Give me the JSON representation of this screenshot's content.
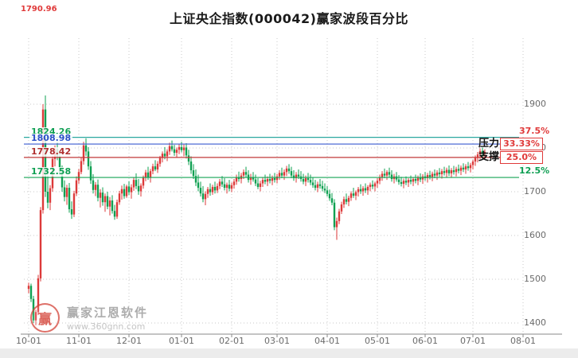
{
  "header": {
    "title": "上证央企指数(000042)赢家波段百分比",
    "latest_price": "1790.96"
  },
  "annotations": {
    "pressure": "压力",
    "support": "支撑"
  },
  "watermark": {
    "brand": "赢家江恩软件",
    "url": "www.360gnn.com",
    "seal": "赢"
  },
  "chart_data": {
    "type": "candlestick",
    "title": "上证央企指数(000042)赢家波段百分比",
    "ylabel": "",
    "xlabel": "",
    "ylim": [
      1400,
      1900
    ],
    "grid": true,
    "grid_color": "#c9c9c9",
    "up_color": "#dd3a3a",
    "down_color": "#0fa052",
    "y_ticks": [
      1900,
      1800,
      1700,
      1600,
      1500,
      1400
    ],
    "x_ticks": [
      {
        "label": "10-01",
        "index": 0
      },
      {
        "label": "11-01",
        "index": 21
      },
      {
        "label": "12-01",
        "index": 42
      },
      {
        "label": "01-01",
        "index": 64
      },
      {
        "label": "02-01",
        "index": 85
      },
      {
        "label": "03-01",
        "index": 104
      },
      {
        "label": "04-01",
        "index": 125
      },
      {
        "label": "05-01",
        "index": 146
      },
      {
        "label": "06-01",
        "index": 166
      },
      {
        "label": "07-01",
        "index": 186
      },
      {
        "label": "08-01",
        "index": 207
      }
    ],
    "levels": [
      {
        "value": 1824.26,
        "price_label": "1824.26",
        "pct_label": "37.5%",
        "line_color": "#2aa8a0",
        "price_color": "#0f9f53",
        "pct_color": "#e03a3a",
        "boxed": false
      },
      {
        "value": 1808.98,
        "price_label": "1808.98",
        "pct_label": "33.33%",
        "line_color": "#3a5bd0",
        "price_color": "#2b50c8",
        "pct_color": "#e03a3a",
        "boxed": true
      },
      {
        "value": 1778.42,
        "price_label": "1778.42",
        "pct_label": "25.0%",
        "line_color": "#c23a3a",
        "price_color": "#b03030",
        "pct_color": "#e03a3a",
        "boxed": true
      },
      {
        "value": 1732.58,
        "price_label": "1732.58",
        "pct_label": "12.5%",
        "line_color": "#15a354",
        "price_color": "#0f9f53",
        "pct_color": "#0f9f53",
        "boxed": false
      }
    ],
    "candles": [
      [
        1478,
        1492,
        1468,
        1485
      ],
      [
        1485,
        1490,
        1448,
        1455
      ],
      [
        1455,
        1462,
        1400,
        1406
      ],
      [
        1406,
        1430,
        1395,
        1425
      ],
      [
        1425,
        1510,
        1418,
        1502
      ],
      [
        1502,
        1665,
        1495,
        1658
      ],
      [
        1658,
        1900,
        1650,
        1888
      ],
      [
        1888,
        1920,
        1688,
        1700
      ],
      [
        1700,
        1745,
        1662,
        1675
      ],
      [
        1675,
        1715,
        1658,
        1708
      ],
      [
        1708,
        1782,
        1700,
        1775
      ],
      [
        1775,
        1806,
        1758,
        1798
      ],
      [
        1798,
        1815,
        1772,
        1780
      ],
      [
        1780,
        1795,
        1738,
        1746
      ],
      [
        1746,
        1760,
        1700,
        1710
      ],
      [
        1710,
        1726,
        1678,
        1688
      ],
      [
        1688,
        1716,
        1670,
        1709
      ],
      [
        1709,
        1720,
        1652,
        1660
      ],
      [
        1660,
        1678,
        1638,
        1648
      ],
      [
        1648,
        1702,
        1642,
        1696
      ],
      [
        1696,
        1735,
        1690,
        1726
      ],
      [
        1726,
        1752,
        1718,
        1745
      ],
      [
        1745,
        1778,
        1740,
        1770
      ],
      [
        1770,
        1814,
        1762,
        1806
      ],
      [
        1806,
        1822,
        1782,
        1792
      ],
      [
        1792,
        1802,
        1750,
        1758
      ],
      [
        1758,
        1770,
        1718,
        1726
      ],
      [
        1726,
        1740,
        1696,
        1704
      ],
      [
        1704,
        1722,
        1690,
        1716
      ],
      [
        1716,
        1728,
        1678,
        1686
      ],
      [
        1686,
        1706,
        1664,
        1698
      ],
      [
        1698,
        1710,
        1668,
        1676
      ],
      [
        1676,
        1696,
        1654,
        1690
      ],
      [
        1690,
        1700,
        1660,
        1666
      ],
      [
        1666,
        1688,
        1646,
        1680
      ],
      [
        1680,
        1692,
        1650,
        1656
      ],
      [
        1656,
        1670,
        1636,
        1643
      ],
      [
        1643,
        1682,
        1638,
        1676
      ],
      [
        1676,
        1702,
        1670,
        1696
      ],
      [
        1696,
        1714,
        1682,
        1706
      ],
      [
        1706,
        1718,
        1684,
        1690
      ],
      [
        1690,
        1716,
        1686,
        1712
      ],
      [
        1712,
        1724,
        1692,
        1699
      ],
      [
        1699,
        1717,
        1684,
        1710
      ],
      [
        1710,
        1732,
        1702,
        1727
      ],
      [
        1727,
        1742,
        1706,
        1713
      ],
      [
        1713,
        1729,
        1693,
        1701
      ],
      [
        1701,
        1719,
        1689,
        1714
      ],
      [
        1714,
        1737,
        1707,
        1732
      ],
      [
        1732,
        1750,
        1724,
        1744
      ],
      [
        1744,
        1757,
        1727,
        1733
      ],
      [
        1733,
        1752,
        1721,
        1747
      ],
      [
        1747,
        1764,
        1740,
        1758
      ],
      [
        1758,
        1772,
        1747,
        1751
      ],
      [
        1751,
        1770,
        1743,
        1764
      ],
      [
        1764,
        1782,
        1757,
        1777
      ],
      [
        1777,
        1792,
        1767,
        1787
      ],
      [
        1787,
        1802,
        1774,
        1781
      ],
      [
        1781,
        1797,
        1770,
        1792
      ],
      [
        1792,
        1812,
        1784,
        1804
      ],
      [
        1804,
        1817,
        1792,
        1797
      ],
      [
        1797,
        1807,
        1782,
        1789
      ],
      [
        1789,
        1801,
        1779,
        1796
      ],
      [
        1796,
        1810,
        1786,
        1802
      ],
      [
        1802,
        1814,
        1790,
        1795
      ],
      [
        1795,
        1808,
        1781,
        1801
      ],
      [
        1801,
        1811,
        1776,
        1783
      ],
      [
        1783,
        1796,
        1761,
        1769
      ],
      [
        1769,
        1781,
        1741,
        1749
      ],
      [
        1749,
        1763,
        1729,
        1736
      ],
      [
        1736,
        1751,
        1713,
        1721
      ],
      [
        1721,
        1739,
        1701,
        1709
      ],
      [
        1709,
        1723,
        1689,
        1696
      ],
      [
        1696,
        1713,
        1676,
        1683
      ],
      [
        1683,
        1701,
        1669,
        1695
      ],
      [
        1695,
        1711,
        1686,
        1706
      ],
      [
        1706,
        1719,
        1691,
        1699
      ],
      [
        1699,
        1716,
        1693,
        1711
      ],
      [
        1711,
        1723,
        1696,
        1703
      ],
      [
        1703,
        1719,
        1697,
        1713
      ],
      [
        1713,
        1729,
        1706,
        1723
      ],
      [
        1723,
        1736,
        1711,
        1717
      ],
      [
        1717,
        1731,
        1703,
        1709
      ],
      [
        1709,
        1721,
        1696,
        1716
      ],
      [
        1716,
        1727,
        1701,
        1707
      ],
      [
        1707,
        1721,
        1699,
        1715
      ],
      [
        1715,
        1729,
        1707,
        1723
      ],
      [
        1723,
        1739,
        1716,
        1733
      ],
      [
        1733,
        1746,
        1723,
        1729
      ],
      [
        1729,
        1743,
        1719,
        1737
      ],
      [
        1737,
        1751,
        1729,
        1745
      ],
      [
        1745,
        1757,
        1733,
        1739
      ],
      [
        1739,
        1749,
        1721,
        1727
      ],
      [
        1727,
        1741,
        1716,
        1733
      ],
      [
        1733,
        1745,
        1723,
        1728
      ],
      [
        1728,
        1739,
        1713,
        1719
      ],
      [
        1719,
        1731,
        1706,
        1711
      ],
      [
        1711,
        1725,
        1701,
        1719
      ],
      [
        1719,
        1733,
        1711,
        1727
      ],
      [
        1727,
        1739,
        1717,
        1723
      ],
      [
        1723,
        1735,
        1713,
        1729
      ],
      [
        1729,
        1741,
        1719,
        1725
      ],
      [
        1725,
        1737,
        1715,
        1731
      ],
      [
        1731,
        1743,
        1721,
        1727
      ],
      [
        1727,
        1741,
        1719,
        1735
      ],
      [
        1735,
        1749,
        1727,
        1743
      ],
      [
        1743,
        1755,
        1731,
        1737
      ],
      [
        1737,
        1751,
        1727,
        1745
      ],
      [
        1745,
        1759,
        1736,
        1753
      ],
      [
        1753,
        1763,
        1741,
        1747
      ],
      [
        1747,
        1757,
        1731,
        1737
      ],
      [
        1737,
        1749,
        1725,
        1731
      ],
      [
        1731,
        1745,
        1721,
        1739
      ],
      [
        1739,
        1751,
        1729,
        1735
      ],
      [
        1735,
        1747,
        1723,
        1729
      ],
      [
        1729,
        1741,
        1717,
        1723
      ],
      [
        1723,
        1737,
        1713,
        1731
      ],
      [
        1731,
        1743,
        1721,
        1727
      ],
      [
        1727,
        1739,
        1715,
        1721
      ],
      [
        1721,
        1733,
        1709,
        1715
      ],
      [
        1715,
        1727,
        1703,
        1709
      ],
      [
        1709,
        1723,
        1699,
        1717
      ],
      [
        1717,
        1729,
        1707,
        1713
      ],
      [
        1713,
        1725,
        1701,
        1707
      ],
      [
        1707,
        1719,
        1697,
        1703
      ],
      [
        1703,
        1713,
        1689,
        1695
      ],
      [
        1695,
        1705,
        1679,
        1685
      ],
      [
        1685,
        1697,
        1669,
        1675
      ],
      [
        1675,
        1683,
        1612,
        1619
      ],
      [
        1619,
        1641,
        1590,
        1633
      ],
      [
        1633,
        1661,
        1626,
        1655
      ],
      [
        1655,
        1677,
        1649,
        1671
      ],
      [
        1671,
        1689,
        1663,
        1683
      ],
      [
        1683,
        1696,
        1671,
        1677
      ],
      [
        1677,
        1691,
        1667,
        1686
      ],
      [
        1686,
        1701,
        1679,
        1696
      ],
      [
        1696,
        1709,
        1686,
        1691
      ],
      [
        1691,
        1703,
        1681,
        1699
      ],
      [
        1699,
        1711,
        1689,
        1706
      ],
      [
        1706,
        1717,
        1695,
        1701
      ],
      [
        1701,
        1713,
        1691,
        1708
      ],
      [
        1708,
        1719,
        1697,
        1703
      ],
      [
        1703,
        1715,
        1693,
        1711
      ],
      [
        1711,
        1721,
        1701,
        1716
      ],
      [
        1716,
        1726,
        1706,
        1712
      ],
      [
        1712,
        1723,
        1701,
        1719
      ],
      [
        1719,
        1731,
        1709,
        1725
      ],
      [
        1725,
        1739,
        1717,
        1733
      ],
      [
        1733,
        1747,
        1725,
        1741
      ],
      [
        1741,
        1753,
        1731,
        1737
      ],
      [
        1737,
        1749,
        1727,
        1745
      ],
      [
        1745,
        1755,
        1733,
        1739
      ],
      [
        1739,
        1749,
        1723,
        1729
      ],
      [
        1729,
        1741,
        1719,
        1735
      ],
      [
        1735,
        1745,
        1723,
        1728
      ],
      [
        1728,
        1738,
        1716,
        1722
      ],
      [
        1722,
        1734,
        1712,
        1718
      ],
      [
        1718,
        1730,
        1708,
        1725
      ],
      [
        1725,
        1735,
        1715,
        1721
      ],
      [
        1721,
        1731,
        1711,
        1727
      ],
      [
        1727,
        1737,
        1717,
        1723
      ],
      [
        1723,
        1733,
        1713,
        1729
      ],
      [
        1729,
        1739,
        1719,
        1725
      ],
      [
        1725,
        1737,
        1715,
        1732
      ],
      [
        1732,
        1742,
        1722,
        1728
      ],
      [
        1728,
        1740,
        1718,
        1735
      ],
      [
        1735,
        1745,
        1725,
        1731
      ],
      [
        1731,
        1743,
        1721,
        1738
      ],
      [
        1738,
        1748,
        1728,
        1734
      ],
      [
        1734,
        1746,
        1724,
        1741
      ],
      [
        1741,
        1751,
        1731,
        1737
      ],
      [
        1737,
        1749,
        1727,
        1744
      ],
      [
        1744,
        1754,
        1734,
        1740
      ],
      [
        1740,
        1752,
        1730,
        1747
      ],
      [
        1747,
        1757,
        1737,
        1743
      ],
      [
        1743,
        1755,
        1733,
        1750
      ],
      [
        1750,
        1760,
        1736,
        1742
      ],
      [
        1742,
        1754,
        1732,
        1749
      ],
      [
        1749,
        1759,
        1739,
        1745
      ],
      [
        1745,
        1757,
        1735,
        1752
      ],
      [
        1752,
        1762,
        1742,
        1748
      ],
      [
        1748,
        1760,
        1738,
        1755
      ],
      [
        1755,
        1765,
        1745,
        1751
      ],
      [
        1751,
        1763,
        1741,
        1758
      ],
      [
        1758,
        1768,
        1748,
        1754
      ],
      [
        1754,
        1766,
        1744,
        1761
      ],
      [
        1761,
        1773,
        1751,
        1769
      ],
      [
        1769,
        1783,
        1759,
        1777
      ],
      [
        1777,
        1791,
        1767,
        1785
      ],
      [
        1785,
        1799,
        1775,
        1793
      ],
      [
        1793,
        1801,
        1779,
        1787
      ],
      [
        1787,
        1797,
        1777,
        1791
      ]
    ]
  }
}
